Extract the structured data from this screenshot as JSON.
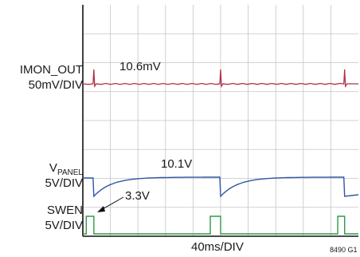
{
  "chart_data": {
    "type": "line",
    "xlabel": "40ms/DIV",
    "figure_id": "8490 G1",
    "grid": true,
    "grid_divisions": {
      "x": 10,
      "y": 8
    },
    "colors": {
      "grid": "#c4c4c4",
      "frame": "#111111",
      "imon": "#b03048",
      "vpanel": "#2f56a6",
      "swen": "#2e9a48"
    },
    "channels": [
      {
        "id": "imon",
        "name": "IMON_OUT",
        "scale": "50mV/DIV",
        "annotation": "10.6mV",
        "baseline_level_mV": 10.6,
        "spike_times_ms": [
          16,
          200,
          380
        ]
      },
      {
        "id": "vpanel",
        "name_main": "V",
        "name_sub": "PANEL",
        "scale": "5V/DIV",
        "annotation": "10.1V",
        "high_level_V": 10.1,
        "dip_level_V": 3.3,
        "edges_ms": [
          16,
          200,
          380
        ]
      },
      {
        "id": "swen",
        "name": "SWEN",
        "scale": "5V/DIV",
        "annotation": "3.3V",
        "high_level_V": 3.3,
        "pulses_ms": [
          [
            5,
            16
          ],
          [
            185,
            200
          ],
          [
            370,
            380
          ]
        ]
      }
    ]
  }
}
